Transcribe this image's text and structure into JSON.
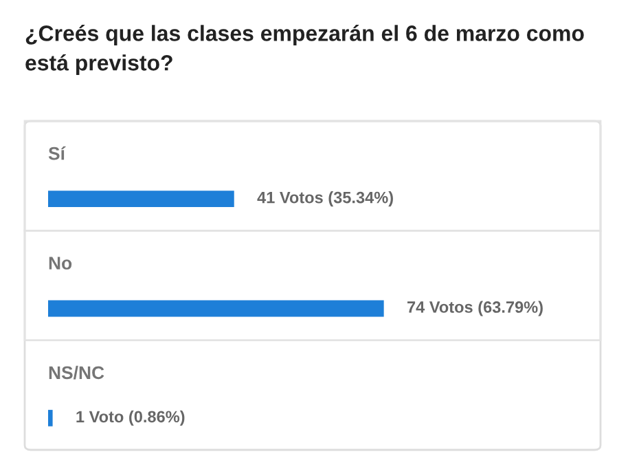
{
  "chart_data": {
    "type": "bar",
    "orientation": "horizontal",
    "title": "¿Creés que las clases empezarán el 6 de marzo como está previsto?",
    "categories": [
      "Sí",
      "No",
      "NS/NC"
    ],
    "values": [
      41,
      74,
      1
    ],
    "color": "#1e7fd8",
    "value_labels": [
      "41 Votos (35.34%)",
      "74 Votos (63.79%)",
      "1 Voto (0.86%)"
    ]
  }
}
